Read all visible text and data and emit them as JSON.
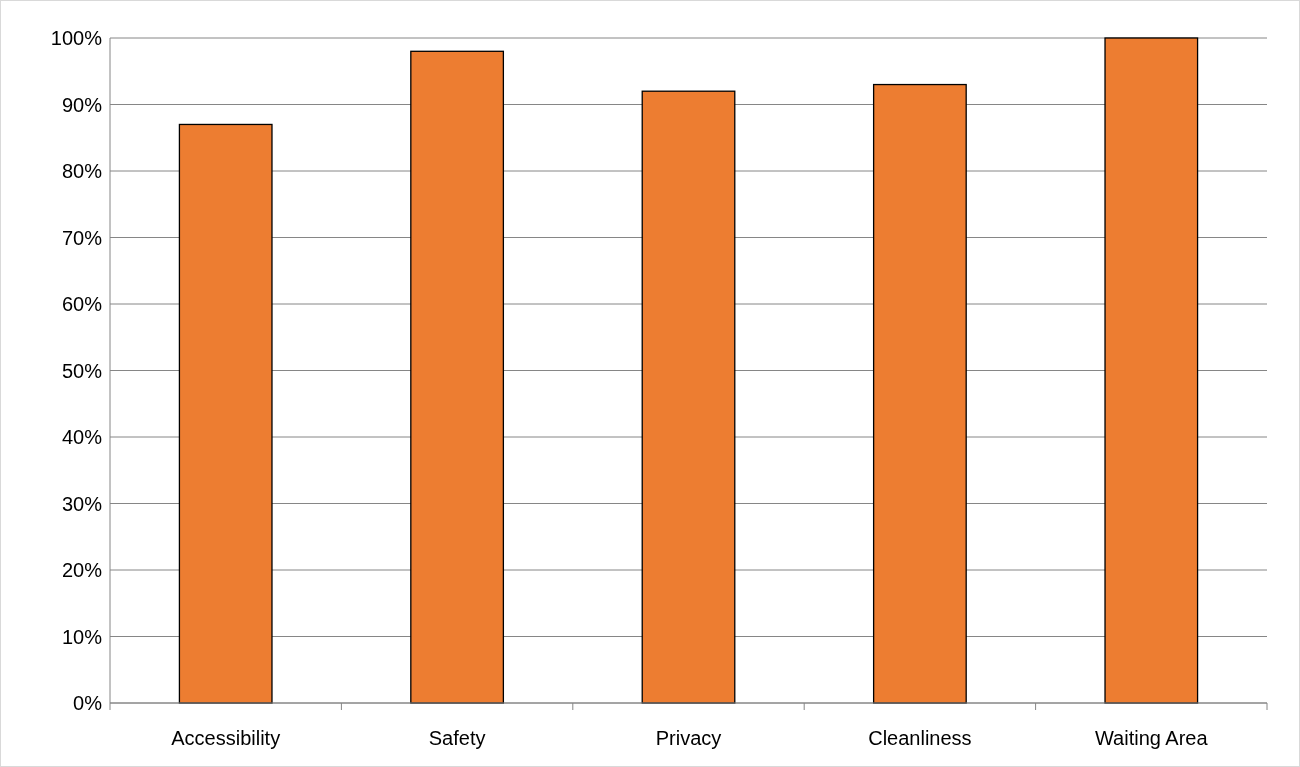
{
  "chart_data": {
    "type": "bar",
    "categories": [
      "Accessibility",
      "Safety",
      "Privacy",
      "Cleanliness",
      "Waiting Area"
    ],
    "values": [
      87,
      98,
      92,
      93,
      100
    ],
    "color": "#ed7d31",
    "ylim": [
      0,
      100
    ],
    "yticks": [
      {
        "value": 0,
        "label": "0%"
      },
      {
        "value": 10,
        "label": "10%"
      },
      {
        "value": 20,
        "label": "20%"
      },
      {
        "value": 30,
        "label": "30%"
      },
      {
        "value": 40,
        "label": "40%"
      },
      {
        "value": 50,
        "label": "50%"
      },
      {
        "value": 60,
        "label": "60%"
      },
      {
        "value": 70,
        "label": "70%"
      },
      {
        "value": 80,
        "label": "80%"
      },
      {
        "value": 90,
        "label": "90%"
      },
      {
        "value": 100,
        "label": "100%"
      }
    ],
    "grid": "y"
  }
}
